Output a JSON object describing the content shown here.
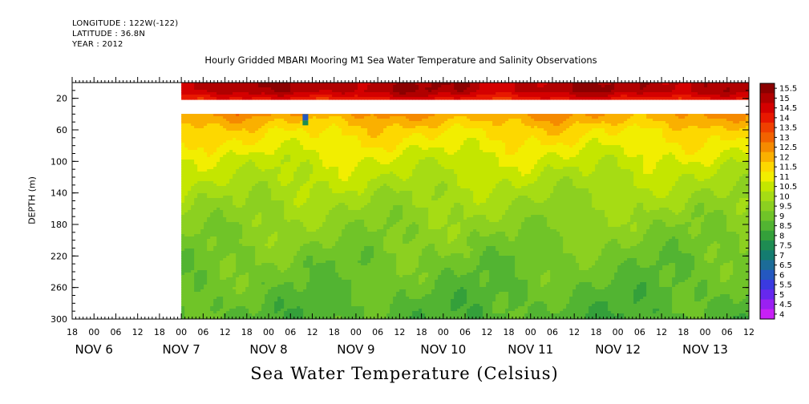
{
  "header": {
    "longitude": "LONGITUDE : 122W(-122)",
    "latitude": "LATITUDE : 36.8N",
    "year": "YEAR : 2012"
  },
  "chart_data": {
    "type": "heatmap",
    "title": "Hourly Gridded MBARI Mooring M1 Sea Water Temperature and Salinity Observations",
    "xlabel": "Sea Water Temperature (Celsius)",
    "ylabel": "DEPTH (m)",
    "y_ticks": [
      "20",
      "60",
      "100",
      "140",
      "180",
      "220",
      "260",
      "300"
    ],
    "y_tick_values": [
      20,
      60,
      100,
      140,
      180,
      220,
      260,
      300
    ],
    "ylim": [
      300,
      0
    ],
    "x_hour_labels": [
      "18",
      "00",
      "06",
      "12",
      "18",
      "00",
      "06",
      "12",
      "18",
      "00",
      "06",
      "12",
      "18",
      "00",
      "06",
      "12",
      "18",
      "00",
      "06",
      "12",
      "18",
      "00",
      "06",
      "12",
      "18",
      "00",
      "06",
      "12",
      "18",
      "00",
      "06",
      "12"
    ],
    "x_date_labels": [
      "NOV  6",
      "NOV  7",
      "NOV  8",
      "NOV  9",
      "NOV 10",
      "NOV 11",
      "NOV 12",
      "NOV 13"
    ],
    "colorbar": {
      "levels": [
        "15.5",
        "15",
        "14.5",
        "14",
        "13.5",
        "13",
        "12.5",
        "12",
        "11.5",
        "11",
        "10.5",
        "10",
        "9.5",
        "9",
        "8.5",
        "8",
        "7.5",
        "7",
        "6.5",
        "6",
        "5.5",
        "5",
        "4.5",
        "4"
      ],
      "colors": [
        "#8b0000",
        "#b00000",
        "#d40000",
        "#e81800",
        "#f04000",
        "#f26200",
        "#f58a00",
        "#fab000",
        "#fdd800",
        "#f2ee00",
        "#c4e600",
        "#a6dc14",
        "#8cd020",
        "#70c428",
        "#52b432",
        "#34a03a",
        "#1e8c52",
        "#147c70",
        "#1c6c98",
        "#2458c0",
        "#3a3ae0",
        "#6628ee",
        "#9a20f2",
        "#c820f6"
      ]
    },
    "data_start_hour": 30,
    "data_end_hour": 210,
    "no_data_depth_range": [
      20,
      40
    ],
    "depth_profile": [
      {
        "depth": 10,
        "temp": 14.8
      },
      {
        "depth": 40,
        "temp": 12.0
      },
      {
        "depth": 60,
        "temp": 11.2
      },
      {
        "depth": 100,
        "temp": 10.3
      },
      {
        "depth": 140,
        "temp": 9.7
      },
      {
        "depth": 180,
        "temp": 9.2
      },
      {
        "depth": 220,
        "temp": 8.8
      },
      {
        "depth": 260,
        "temp": 8.5
      },
      {
        "depth": 300,
        "temp": 8.2
      }
    ]
  }
}
